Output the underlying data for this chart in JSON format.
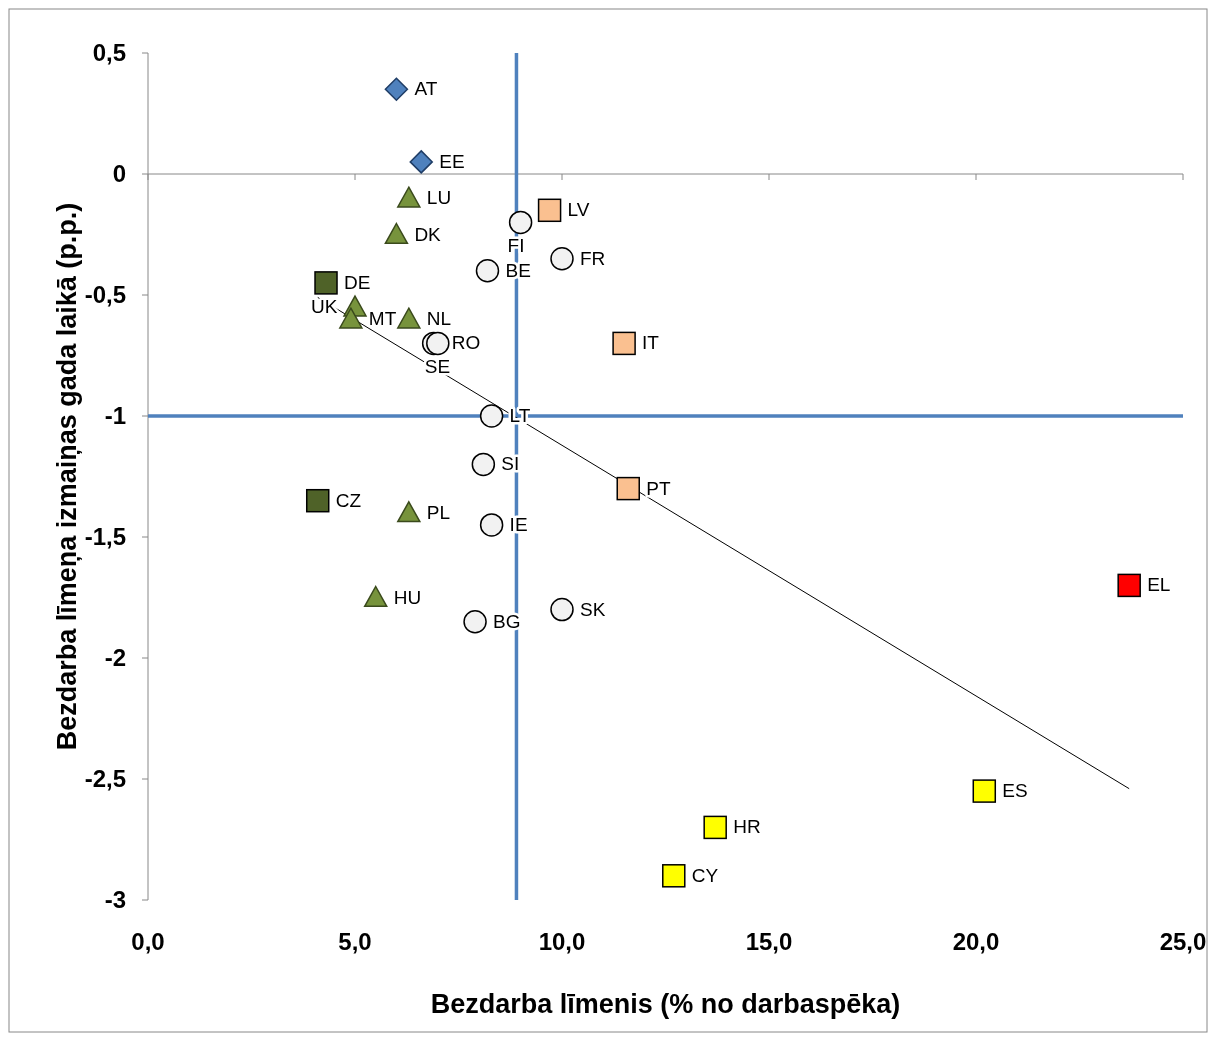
{
  "chart_data": {
    "type": "scatter",
    "xlabel": "Bezdarba līmenis (% no darbaspēka)",
    "ylabel": "Bezdarba līmeņa izmaiņas gada laikā (p.p.)",
    "xlim": [
      0,
      25
    ],
    "ylim": [
      -3,
      0.5
    ],
    "xticks": [
      {
        "value": 0,
        "label": "0,0"
      },
      {
        "value": 5,
        "label": "5,0"
      },
      {
        "value": 10,
        "label": "10,0"
      },
      {
        "value": 15,
        "label": "15,0"
      },
      {
        "value": 20,
        "label": "20,0"
      },
      {
        "value": 25,
        "label": "25,0"
      }
    ],
    "yticks": [
      {
        "value": 0.5,
        "label": "0,5"
      },
      0,
      {
        "value": -0.5,
        "label": "-0,5"
      },
      -1,
      {
        "value": -1.5,
        "label": "-1,5"
      },
      -2,
      {
        "value": -2.5,
        "label": "-2,5"
      },
      -3
    ],
    "grid": false,
    "ref_lines": [
      {
        "axis": "x",
        "value": 8.9,
        "color": "#4f81bd"
      },
      {
        "axis": "y",
        "value": -1,
        "color": "#4f81bd"
      }
    ],
    "series": [
      {
        "type": "line",
        "color": "#000000",
        "marker": "none",
        "x": [
          4.1,
          23.7
        ],
        "values": [
          -0.51,
          -2.54
        ]
      },
      {
        "color": "#4f81bd",
        "marker": "diamond",
        "x": [
          6.0,
          6.6
        ],
        "values": [
          0.35,
          0.05
        ],
        "value_labels": [
          "AT",
          "EE"
        ]
      },
      {
        "color": "#77933c",
        "marker": "triangle",
        "x": [
          6.3,
          6.0,
          5.0,
          4.9,
          6.3,
          6.3,
          5.5
        ],
        "values": [
          -0.1,
          -0.25,
          -0.55,
          -0.6,
          -0.6,
          -1.4,
          -1.75
        ],
        "value_labels": [
          "LU",
          "DK",
          "UK",
          "MT",
          "NL",
          "PL",
          "HU"
        ]
      },
      {
        "color": "#4f6228",
        "marker": "square",
        "x": [
          4.3,
          4.1
        ],
        "values": [
          -0.45,
          -1.35
        ],
        "value_labels": [
          "DE",
          "CZ"
        ]
      },
      {
        "color": "#f2f2f2",
        "marker": "circle",
        "x": [
          9.0,
          8.2,
          10.0,
          6.9,
          7.0,
          8.3,
          8.1,
          8.3,
          10.0,
          7.9
        ],
        "values": [
          -0.2,
          -0.4,
          -0.35,
          -0.7,
          -0.7,
          -1.0,
          -1.2,
          -1.45,
          -1.8,
          -1.85
        ],
        "value_labels": [
          "FI",
          "BE",
          "FR",
          "RO",
          "SE",
          "LT",
          "SI",
          "IE",
          "SK",
          "BG"
        ]
      },
      {
        "color": "#fac090",
        "marker": "square",
        "x": [
          9.7,
          11.5,
          11.6
        ],
        "values": [
          -0.15,
          -0.7,
          -1.3
        ],
        "value_labels": [
          "LV",
          "IT",
          "PT"
        ]
      },
      {
        "color": "#ff0000",
        "marker": "square",
        "x": [
          23.7
        ],
        "values": [
          -1.7
        ],
        "value_labels": [
          "EL"
        ]
      },
      {
        "color": "#ffff00",
        "marker": "square",
        "x": [
          20.2,
          13.7,
          12.7
        ],
        "values": [
          -2.55,
          -2.7,
          -2.9
        ],
        "value_labels": [
          "ES",
          "HR",
          "CY"
        ]
      }
    ]
  }
}
